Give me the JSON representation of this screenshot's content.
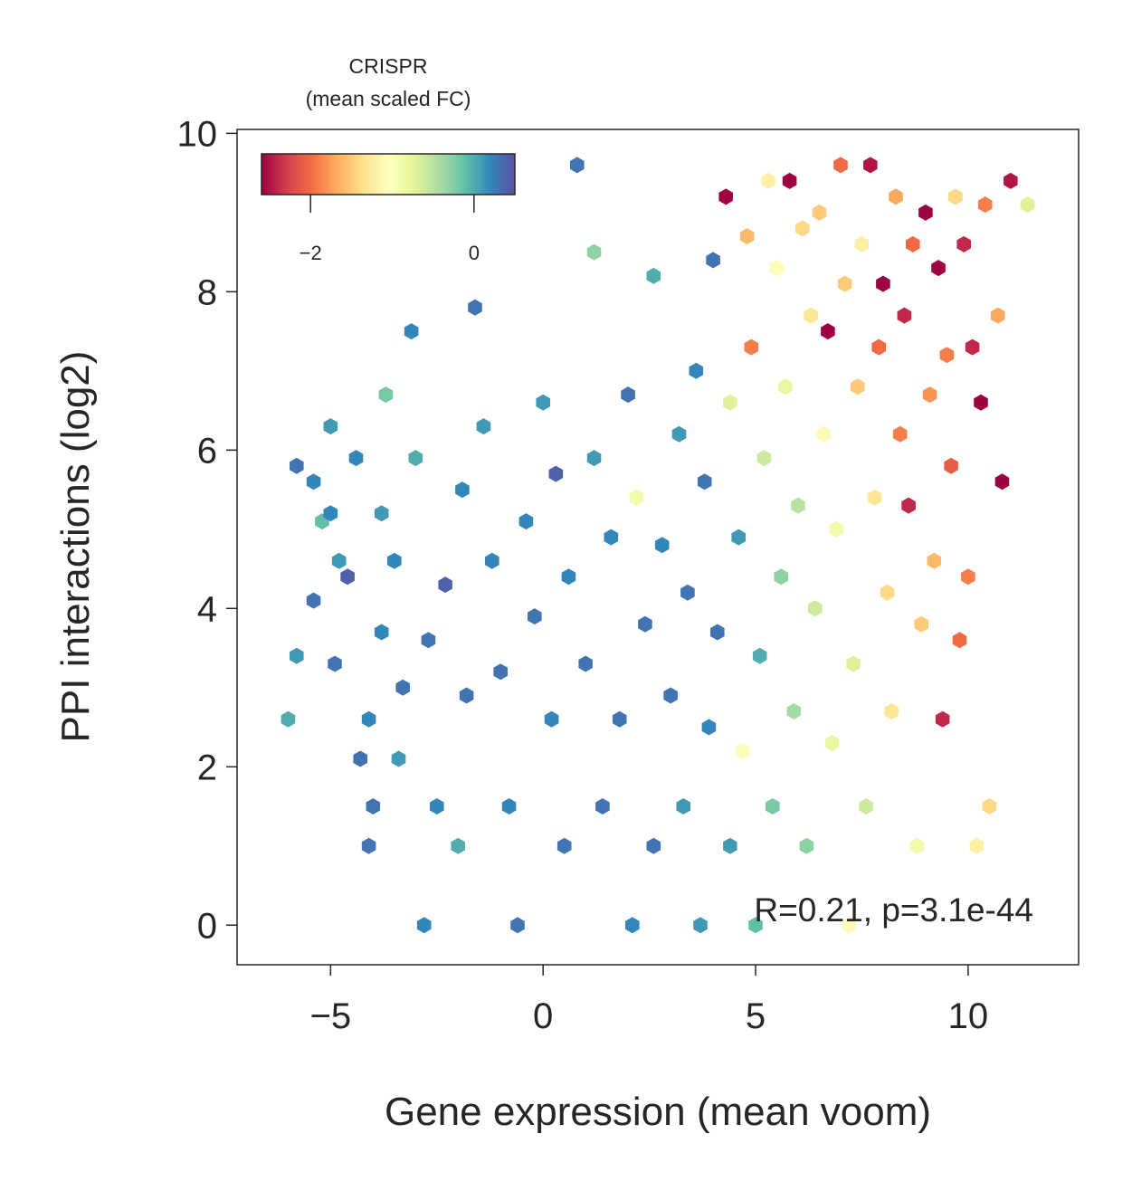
{
  "chart_data": {
    "type": "hexbin",
    "xlabel": "Gene expression (mean voom)",
    "ylabel": "PPI interactions (log2)",
    "xlim": [
      -7.2,
      12.6
    ],
    "ylim": [
      -0.5,
      10.05
    ],
    "xticks": [
      -5,
      0,
      5,
      10
    ],
    "xtick_labels": [
      "−5",
      "0",
      "5",
      "10"
    ],
    "yticks": [
      0,
      2,
      4,
      6,
      8,
      10
    ],
    "ytick_labels": [
      "0",
      "2",
      "4",
      "6",
      "8",
      "10"
    ],
    "annotation": "R=0.21, p=3.1e-44",
    "colorbar": {
      "title_line1": "CRISPR",
      "title_line2": "(mean scaled FC)",
      "colormap": "Spectral",
      "range": [
        -2.6,
        0.5
      ],
      "ticks": [
        -2,
        0
      ],
      "tick_labels": [
        "−2",
        "0"
      ],
      "stops": [
        "#9e0142",
        "#d53e4f",
        "#f46d43",
        "#fdae61",
        "#fee08b",
        "#ffffbf",
        "#e6f598",
        "#abdda4",
        "#66c2a5",
        "#3288bd",
        "#5e4fa2"
      ]
    },
    "grid": false,
    "hexbin_cells": [
      [
        -6.0,
        2.6,
        0.0
      ],
      [
        -5.8,
        3.4,
        0.1
      ],
      [
        -5.8,
        5.8,
        0.3
      ],
      [
        -5.4,
        5.6,
        0.2
      ],
      [
        -5.4,
        4.1,
        0.3
      ],
      [
        -5.2,
        5.1,
        -0.1
      ],
      [
        -5.0,
        6.3,
        0.1
      ],
      [
        -5.0,
        5.2,
        0.2
      ],
      [
        -4.9,
        3.3,
        0.3
      ],
      [
        -4.8,
        4.6,
        0.1
      ],
      [
        -4.6,
        4.4,
        0.4
      ],
      [
        -4.4,
        5.9,
        0.2
      ],
      [
        -4.3,
        2.1,
        0.3
      ],
      [
        -4.1,
        1.0,
        0.3
      ],
      [
        -4.1,
        2.6,
        0.2
      ],
      [
        -4.0,
        1.5,
        0.3
      ],
      [
        -3.8,
        3.7,
        0.2
      ],
      [
        -3.8,
        5.2,
        0.1
      ],
      [
        -3.7,
        6.7,
        -0.2
      ],
      [
        -3.5,
        4.6,
        0.2
      ],
      [
        -3.4,
        2.1,
        0.1
      ],
      [
        -3.3,
        3.0,
        0.3
      ],
      [
        -3.1,
        7.5,
        0.2
      ],
      [
        -3.0,
        5.9,
        0.0
      ],
      [
        -2.8,
        0.0,
        0.2
      ],
      [
        -2.7,
        3.6,
        0.3
      ],
      [
        -2.5,
        1.5,
        0.2
      ],
      [
        -2.3,
        4.3,
        0.4
      ],
      [
        -2.0,
        1.0,
        0.0
      ],
      [
        -1.9,
        5.5,
        0.2
      ],
      [
        -1.8,
        2.9,
        0.3
      ],
      [
        -1.6,
        7.8,
        0.3
      ],
      [
        -1.4,
        6.3,
        0.1
      ],
      [
        -1.2,
        4.6,
        0.2
      ],
      [
        -1.0,
        3.2,
        0.3
      ],
      [
        -0.8,
        1.5,
        0.2
      ],
      [
        -0.6,
        0.0,
        0.3
      ],
      [
        -0.4,
        5.1,
        0.2
      ],
      [
        -0.2,
        3.9,
        0.3
      ],
      [
        0.0,
        6.6,
        0.1
      ],
      [
        0.2,
        2.6,
        0.2
      ],
      [
        0.3,
        5.7,
        0.4
      ],
      [
        0.5,
        1.0,
        0.3
      ],
      [
        0.6,
        4.4,
        0.2
      ],
      [
        0.8,
        9.6,
        0.3
      ],
      [
        1.0,
        3.3,
        0.3
      ],
      [
        1.2,
        8.5,
        -0.3
      ],
      [
        1.2,
        5.9,
        0.1
      ],
      [
        1.4,
        1.5,
        0.3
      ],
      [
        1.6,
        4.9,
        0.2
      ],
      [
        1.8,
        2.6,
        0.3
      ],
      [
        2.0,
        6.7,
        0.3
      ],
      [
        2.1,
        0.0,
        0.2
      ],
      [
        2.2,
        5.4,
        -0.9
      ],
      [
        2.4,
        3.8,
        0.3
      ],
      [
        2.6,
        8.2,
        0.0
      ],
      [
        2.6,
        1.0,
        0.3
      ],
      [
        2.8,
        4.8,
        0.2
      ],
      [
        3.0,
        2.9,
        0.3
      ],
      [
        3.2,
        6.2,
        0.1
      ],
      [
        3.3,
        1.5,
        0.1
      ],
      [
        3.4,
        4.2,
        0.3
      ],
      [
        3.6,
        7.0,
        0.2
      ],
      [
        3.7,
        0.0,
        0.1
      ],
      [
        3.8,
        5.6,
        0.3
      ],
      [
        3.9,
        2.5,
        0.2
      ],
      [
        4.0,
        8.4,
        0.3
      ],
      [
        4.1,
        3.7,
        0.3
      ],
      [
        4.3,
        9.2,
        -2.6
      ],
      [
        4.4,
        1.0,
        0.1
      ],
      [
        4.4,
        6.6,
        -0.7
      ],
      [
        4.6,
        4.9,
        0.1
      ],
      [
        4.7,
        2.2,
        -1.0
      ],
      [
        4.8,
        8.7,
        -1.6
      ],
      [
        4.9,
        7.3,
        -1.9
      ],
      [
        5.0,
        0.0,
        -0.1
      ],
      [
        5.1,
        3.4,
        0.0
      ],
      [
        5.2,
        5.9,
        -0.6
      ],
      [
        5.3,
        9.4,
        -1.2
      ],
      [
        5.4,
        1.5,
        -0.2
      ],
      [
        5.5,
        8.3,
        -1.0
      ],
      [
        5.6,
        4.4,
        -0.3
      ],
      [
        5.7,
        6.8,
        -0.8
      ],
      [
        5.8,
        9.4,
        -2.6
      ],
      [
        5.9,
        2.7,
        -0.4
      ],
      [
        6.0,
        5.3,
        -0.5
      ],
      [
        6.1,
        8.8,
        -1.4
      ],
      [
        6.2,
        1.0,
        -0.3
      ],
      [
        6.3,
        7.7,
        -1.3
      ],
      [
        6.4,
        4.0,
        -0.6
      ],
      [
        6.5,
        9.0,
        -1.5
      ],
      [
        6.6,
        6.2,
        -1.1
      ],
      [
        6.7,
        7.5,
        -2.6
      ],
      [
        6.8,
        2.3,
        -0.8
      ],
      [
        6.9,
        5.0,
        -0.9
      ],
      [
        7.0,
        9.6,
        -2.0
      ],
      [
        7.1,
        8.1,
        -1.5
      ],
      [
        7.2,
        0.0,
        -1.1
      ],
      [
        7.3,
        3.3,
        -0.7
      ],
      [
        7.4,
        6.8,
        -1.5
      ],
      [
        7.5,
        8.6,
        -1.2
      ],
      [
        7.6,
        1.5,
        -0.6
      ],
      [
        7.7,
        9.6,
        -2.5
      ],
      [
        7.8,
        5.4,
        -1.3
      ],
      [
        7.9,
        7.3,
        -2.0
      ],
      [
        8.0,
        8.1,
        -2.6
      ],
      [
        8.1,
        4.2,
        -1.4
      ],
      [
        8.2,
        2.7,
        -1.3
      ],
      [
        8.3,
        9.2,
        -1.7
      ],
      [
        8.4,
        6.2,
        -1.9
      ],
      [
        8.5,
        7.7,
        -2.4
      ],
      [
        8.6,
        5.3,
        -2.4
      ],
      [
        8.7,
        8.6,
        -2.0
      ],
      [
        8.8,
        1.0,
        -0.9
      ],
      [
        8.9,
        3.8,
        -1.5
      ],
      [
        9.0,
        9.0,
        -2.6
      ],
      [
        9.1,
        6.7,
        -1.8
      ],
      [
        9.2,
        4.6,
        -1.6
      ],
      [
        9.3,
        8.3,
        -2.6
      ],
      [
        9.4,
        2.6,
        -2.4
      ],
      [
        9.5,
        7.2,
        -1.9
      ],
      [
        9.6,
        5.8,
        -2.1
      ],
      [
        9.7,
        9.2,
        -1.4
      ],
      [
        9.8,
        3.6,
        -2.0
      ],
      [
        9.9,
        8.6,
        -2.4
      ],
      [
        10.0,
        4.4,
        -1.9
      ],
      [
        10.1,
        7.3,
        -2.4
      ],
      [
        10.2,
        1.0,
        -1.2
      ],
      [
        10.3,
        6.6,
        -2.6
      ],
      [
        10.4,
        9.1,
        -1.9
      ],
      [
        10.5,
        1.5,
        -1.4
      ],
      [
        10.7,
        7.7,
        -1.7
      ],
      [
        10.8,
        5.6,
        -2.6
      ],
      [
        11.0,
        9.4,
        -2.5
      ],
      [
        11.4,
        9.1,
        -0.7
      ]
    ]
  }
}
